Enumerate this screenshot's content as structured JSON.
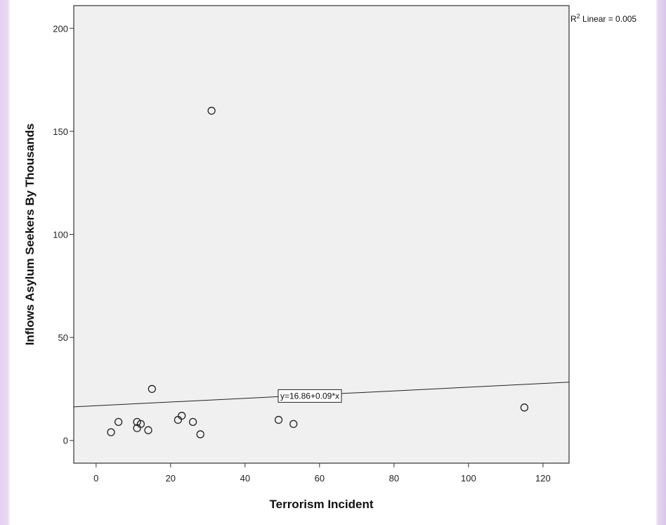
{
  "chart_data": {
    "type": "scatter",
    "xlabel": "Terrorism Incident",
    "ylabel": "Inflows Asylum Seekers By Thousands",
    "xlim": [
      -6,
      127
    ],
    "ylim": [
      -11,
      211
    ],
    "xticks": [
      0,
      20,
      40,
      60,
      80,
      100,
      120
    ],
    "yticks": [
      0,
      50,
      100,
      150,
      200
    ],
    "grid": false,
    "background": "#f0f0f0",
    "points": [
      {
        "x": 31,
        "y": 160
      },
      {
        "x": 15,
        "y": 25
      },
      {
        "x": 4,
        "y": 4
      },
      {
        "x": 6,
        "y": 9
      },
      {
        "x": 11,
        "y": 9
      },
      {
        "x": 11,
        "y": 6
      },
      {
        "x": 12,
        "y": 8
      },
      {
        "x": 14,
        "y": 5
      },
      {
        "x": 22,
        "y": 10
      },
      {
        "x": 23,
        "y": 12
      },
      {
        "x": 26,
        "y": 9
      },
      {
        "x": 28,
        "y": 3
      },
      {
        "x": 49,
        "y": 10
      },
      {
        "x": 53,
        "y": 8
      },
      {
        "x": 115,
        "y": 16
      }
    ],
    "fit_line": {
      "intercept": 16.86,
      "slope": 0.09,
      "label": "y=16.86+0.09*x"
    },
    "r2": {
      "prefix": "R",
      "sup": "2",
      "text": " Linear = 0.005"
    }
  }
}
